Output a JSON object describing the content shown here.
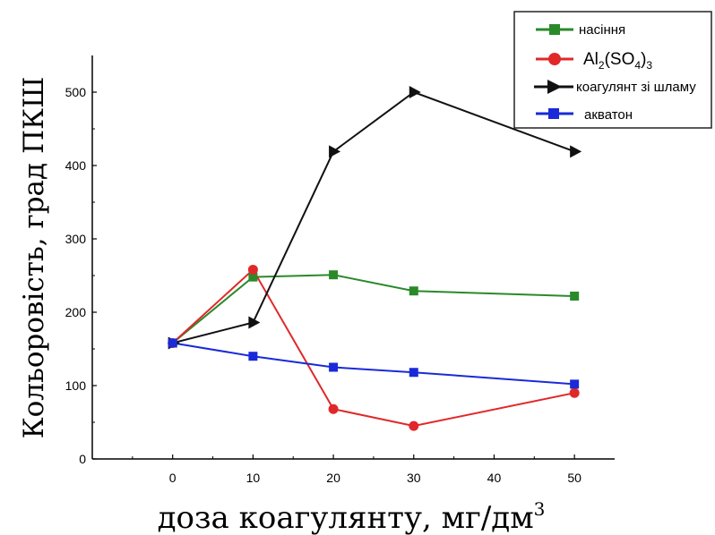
{
  "chart_data": {
    "type": "line",
    "xlabel": "доза коагулянту, мг/дм",
    "xlabel_sup": "3",
    "ylabel": "Кольоровість, град ПКШ",
    "x": [
      0,
      10,
      20,
      30,
      50
    ],
    "xlim": [
      -10,
      55
    ],
    "ylim": [
      0,
      550
    ],
    "xticks": [
      0,
      10,
      20,
      30,
      40,
      50
    ],
    "yticks": [
      0,
      100,
      200,
      300,
      400,
      500
    ],
    "grid": false,
    "legend_position": "top-right",
    "series": [
      {
        "key": "s1",
        "name": "насіння",
        "color": "#2a8a2a",
        "marker": "square",
        "values": [
          158,
          248,
          251,
          229,
          222
        ]
      },
      {
        "key": "s2",
        "name": "Al2(SO4)3",
        "color": "#e0282a",
        "marker": "circle",
        "values": [
          158,
          258,
          68,
          45,
          90
        ]
      },
      {
        "key": "s3",
        "name": "коагулянт зі шламу",
        "color": "#111111",
        "marker": "triangle-right",
        "values": [
          158,
          186,
          419,
          500,
          419
        ]
      },
      {
        "key": "s4",
        "name": "акватон",
        "color": "#1a2ad8",
        "marker": "square",
        "values": [
          158,
          140,
          125,
          118,
          102
        ]
      }
    ]
  },
  "legend": {
    "s1": "насіння",
    "s2_parts": [
      "Al",
      "2",
      "(SO",
      "4",
      ")",
      "3"
    ],
    "s3": "коагулянт зі шламу",
    "s4": "акватон"
  }
}
